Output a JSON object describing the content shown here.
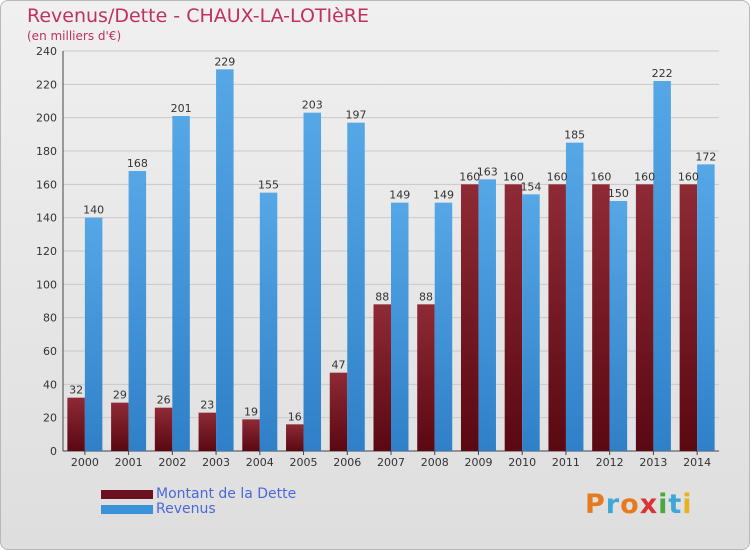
{
  "colors": {
    "title": "#c03060",
    "legend_text": "#4a68d8",
    "dette": "#6a1020",
    "revenus": "#3a93d8"
  },
  "header": {
    "title": "Revenus/Dette - CHAUX-LA-LOTIèRE",
    "subtitle": "(en milliers d'€)"
  },
  "legend": {
    "items": [
      {
        "label": "Montant de la Dette",
        "color": "#6a1020"
      },
      {
        "label": "Revenus",
        "color": "#3a93d8"
      }
    ]
  },
  "logo": {
    "text": "Proxiti",
    "letters": [
      "P",
      "r",
      "o",
      "x",
      "i",
      "t",
      "i"
    ],
    "letter_colors": [
      "#e67a1e",
      "#3fa7d8",
      "#e67a1e",
      "#d93333",
      "#4aa83f",
      "#3fa7d8",
      "#e6b21e"
    ]
  },
  "chart_data": {
    "type": "bar",
    "title": "Revenus/Dette - CHAUX-LA-LOTIèRE",
    "subtitle": "(en milliers d'€)",
    "xlabel": "",
    "ylabel": "",
    "categories": [
      "2000",
      "2001",
      "2002",
      "2003",
      "2004",
      "2005",
      "2006",
      "2007",
      "2008",
      "2009",
      "2010",
      "2011",
      "2012",
      "2013",
      "2014"
    ],
    "series": [
      {
        "name": "Montant de la Dette",
        "values": [
          32,
          29,
          26,
          23,
          19,
          16,
          47,
          88,
          88,
          160,
          160,
          160,
          160,
          160,
          160
        ]
      },
      {
        "name": "Revenus",
        "values": [
          140,
          168,
          201,
          229,
          155,
          203,
          197,
          149,
          149,
          163,
          154,
          185,
          150,
          222,
          172
        ]
      }
    ],
    "ylim": [
      0,
      240
    ],
    "yticks": [
      0,
      20,
      40,
      60,
      80,
      100,
      120,
      140,
      160,
      180,
      200,
      220,
      240
    ],
    "grid": true,
    "legend_position": "bottom-left"
  }
}
